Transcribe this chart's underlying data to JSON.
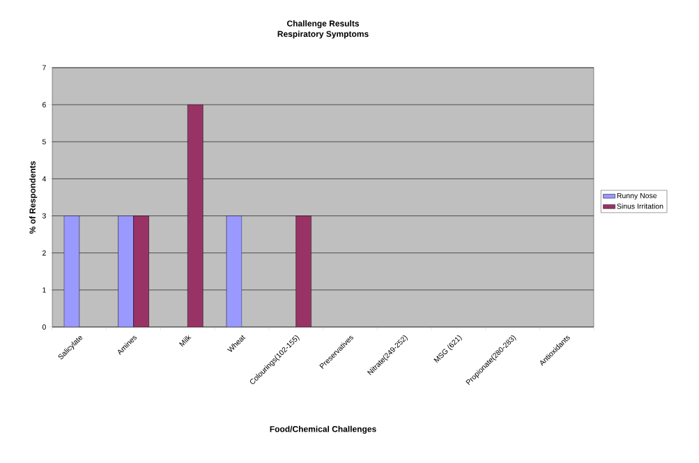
{
  "chart_data": {
    "type": "bar",
    "title": "Challenge Results",
    "subtitle": "Respiratory Symptoms",
    "xlabel": "Food/Chemical Challenges",
    "ylabel": "% of Respondents",
    "categories": [
      "Salicylate",
      "Amines",
      "Milk",
      "Wheat",
      "Colourings(102-155)",
      "Preservatives",
      "Nitrate(249-252)",
      "MSG (621)",
      "Propionate(280-283)",
      "Antioxidants"
    ],
    "series": [
      {
        "name": "Runny Nose",
        "color": "#9999ff",
        "values": [
          3,
          3,
          null,
          3,
          null,
          null,
          null,
          null,
          null,
          null
        ]
      },
      {
        "name": "Sinus Irritation",
        "color": "#993366",
        "values": [
          null,
          3,
          6,
          null,
          3,
          null,
          null,
          null,
          null,
          null
        ]
      }
    ],
    "ylim": [
      0,
      7
    ],
    "yticks": [
      0,
      1,
      2,
      3,
      4,
      5,
      6,
      7
    ],
    "grid": "y",
    "legend": "right"
  }
}
